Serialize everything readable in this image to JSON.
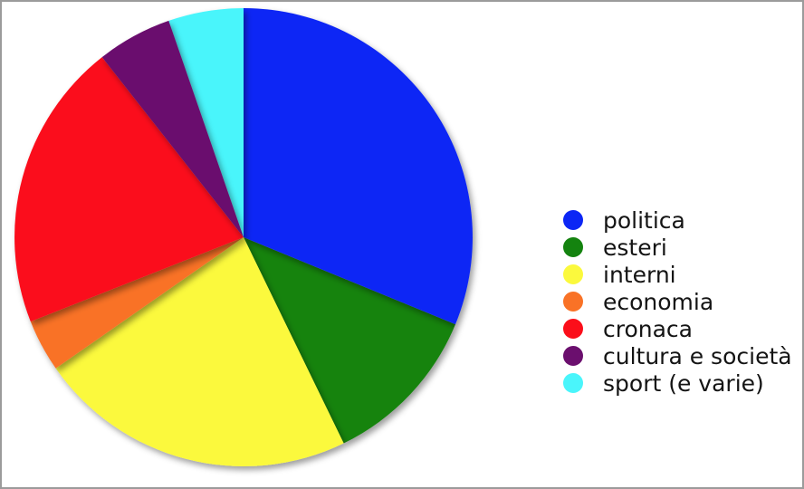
{
  "page": {
    "background_color": "#ffffff",
    "frame_border_color": "#9b9b9b"
  },
  "chart_data": {
    "type": "pie",
    "title": "",
    "labels": [
      "politica",
      "esteri",
      "interni",
      "economia",
      "cronaca",
      "cultura e società",
      "sport (e varie)"
    ],
    "values": [
      31.2,
      11.6,
      22.5,
      3.7,
      20.4,
      5.3,
      5.3
    ],
    "values_note": "percent of circle, estimated from slice angles (no numeric labels shown in image)",
    "colors": [
      "#0c26f5",
      "#14830f",
      "#fbf93d",
      "#f97226",
      "#fb0e1a",
      "#6b0f6e",
      "#4af5fb"
    ],
    "start_angle": 0,
    "direction": "clockwise",
    "start_reference": "12 o'clock",
    "legend_position": "right",
    "legend_marker": "circle",
    "text_color": "#141414",
    "slice_shadow": true
  }
}
